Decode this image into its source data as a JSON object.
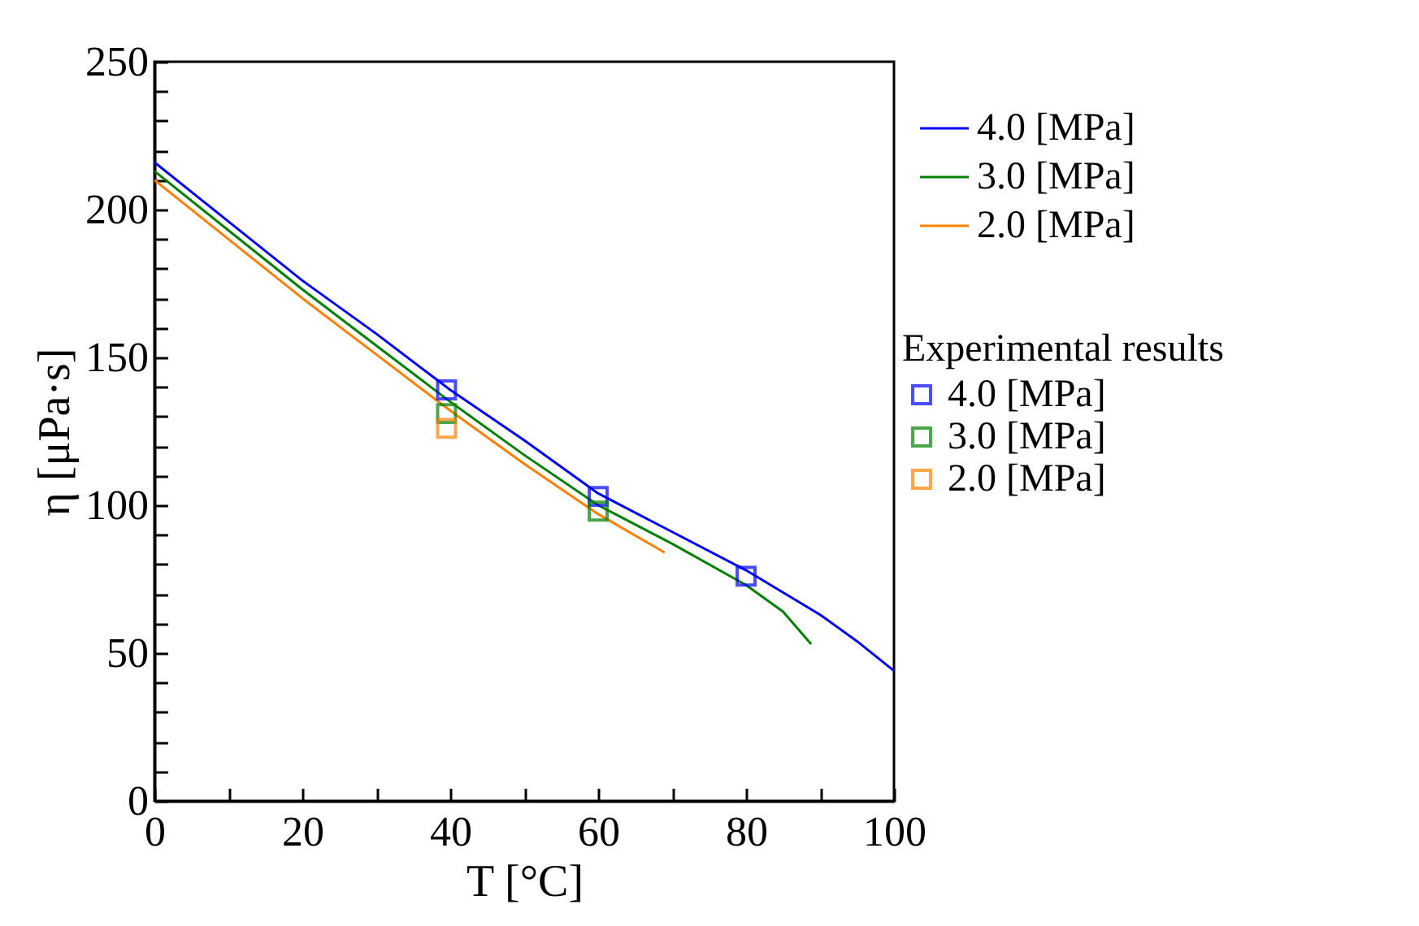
{
  "chart_data": {
    "type": "line",
    "xlabel": "T [°C]",
    "ylabel": "η [μPa·s]",
    "legend_title": "Experimental results",
    "xlim": [
      0,
      100
    ],
    "xticks": [
      0,
      {
        "value": 10,
        "label": null
      },
      20,
      {
        "value": 30,
        "label": null
      },
      40,
      {
        "value": 50,
        "label": null
      },
      60,
      {
        "value": 70,
        "label": null
      },
      80,
      {
        "value": 90,
        "label": null
      },
      100
    ],
    "ylim": [
      0,
      250
    ],
    "yticks": [
      0,
      {
        "value": 10,
        "label": null
      },
      {
        "value": 20,
        "label": null
      },
      {
        "value": 30,
        "label": null
      },
      {
        "value": 40,
        "label": null
      },
      50,
      {
        "value": 60,
        "label": null
      },
      {
        "value": 70,
        "label": null
      },
      {
        "value": 80,
        "label": null
      },
      {
        "value": 90,
        "label": null
      },
      100,
      {
        "value": 110,
        "label": null
      },
      {
        "value": 120,
        "label": null
      },
      {
        "value": 130,
        "label": null
      },
      {
        "value": 140,
        "label": null
      },
      150,
      {
        "value": 160,
        "label": null
      },
      {
        "value": 170,
        "label": null
      },
      {
        "value": 180,
        "label": null
      },
      {
        "value": 190,
        "label": null
      },
      200,
      {
        "value": 210,
        "label": null
      },
      {
        "value": 220,
        "label": null
      },
      {
        "value": 230,
        "label": null
      },
      {
        "value": 240,
        "label": null
      },
      250
    ],
    "grid": false,
    "legend": "right",
    "line_style": "solid",
    "series": [
      {
        "type": "line",
        "name": "4.0 [MPa]",
        "color": "#0000ff",
        "x": [
          0,
          10,
          20,
          30,
          40,
          50,
          60,
          70,
          80,
          90,
          95,
          100
        ],
        "values": [
          216,
          196,
          176,
          158,
          139,
          122,
          104,
          91,
          78,
          63,
          54,
          44
        ]
      },
      {
        "type": "line",
        "name": "3.0 [MPa]",
        "color": "#008000",
        "x": [
          0,
          10,
          20,
          30,
          40,
          50,
          60,
          70,
          80,
          85,
          88.8
        ],
        "values": [
          213,
          193,
          173,
          154,
          135,
          117,
          100,
          87,
          73,
          64,
          53
        ]
      },
      {
        "type": "line",
        "name": "2.0 [MPa]",
        "color": "#ff8000",
        "x": [
          0,
          10,
          20,
          30,
          40,
          50,
          60,
          69
        ],
        "values": [
          210,
          190,
          170,
          151,
          132,
          114,
          97,
          84
        ]
      },
      {
        "type": "scatter",
        "name": "4.0 [MPa]",
        "color": "#0000ff",
        "marker": "square",
        "x": [
          39.5,
          60,
          80
        ],
        "values": [
          139,
          103,
          76
        ]
      },
      {
        "type": "scatter",
        "name": "3.0 [MPa]",
        "color": "#008000",
        "marker": "square",
        "x": [
          39.5,
          60
        ],
        "values": [
          131,
          98
        ]
      },
      {
        "type": "scatter",
        "name": "2.0 [MPa]",
        "color": "#ff8000",
        "marker": "square",
        "x": [
          39.5
        ],
        "values": [
          126
        ]
      }
    ]
  }
}
